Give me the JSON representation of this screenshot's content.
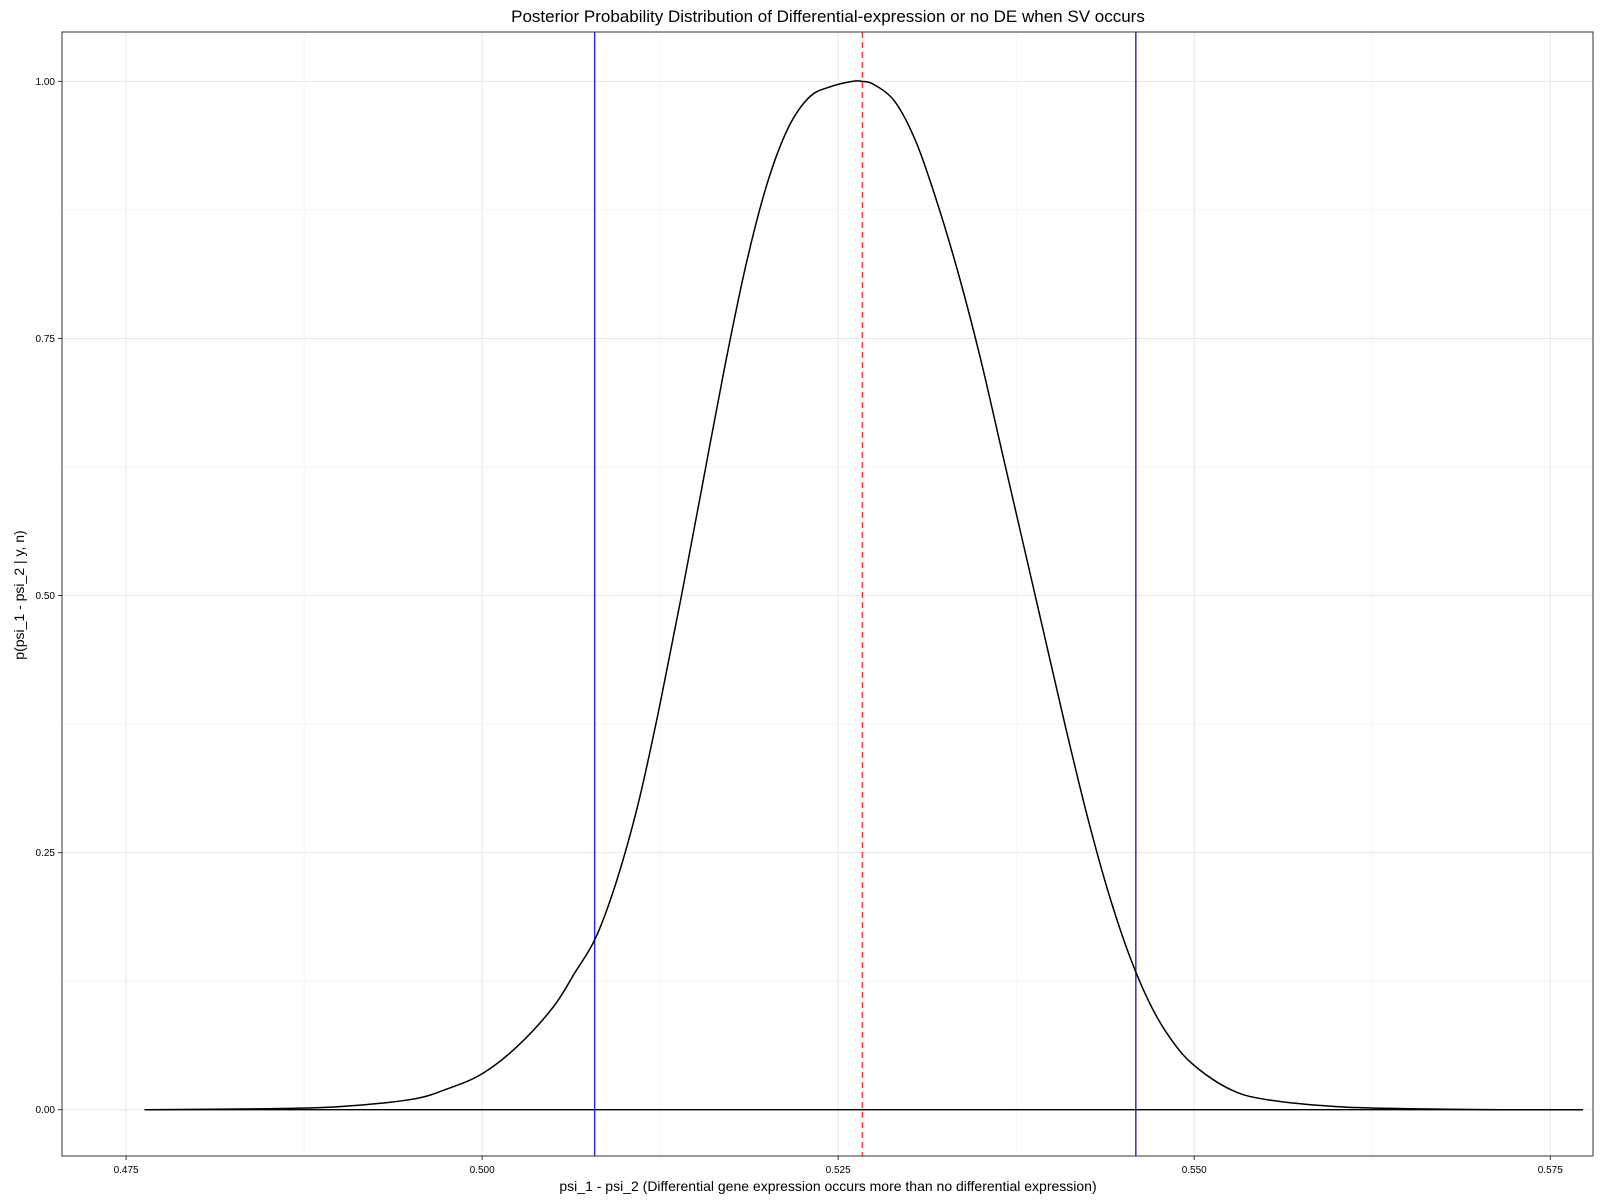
{
  "chart_data": {
    "type": "line",
    "title": "Posterior Probability Distribution of Differential-expression or no DE when SV occurs",
    "xlabel": "psi_1 - psi_2 (Differential gene expression occurs more than no differential expression)",
    "ylabel": "p(psi_1 - psi_2 | y, n)",
    "xlim": [
      0.4705,
      0.578
    ],
    "ylim": [
      -0.045,
      1.048
    ],
    "x_ticks": [
      0.475,
      0.5,
      0.525,
      0.55,
      0.575
    ],
    "x_tick_labels": [
      "0.475",
      "0.500",
      "0.525",
      "0.550",
      "0.575"
    ],
    "y_ticks": [
      0.0,
      0.25,
      0.5,
      0.75,
      1.0
    ],
    "y_tick_labels": [
      "0.00",
      "0.25",
      "0.50",
      "0.75",
      "1.00"
    ],
    "grid": true,
    "legend": "none",
    "series": [
      {
        "color": "#000000",
        "x": [
          0.4763,
          0.485,
          0.49,
          0.495,
          0.4975,
          0.5,
          0.5025,
          0.505,
          0.5065,
          0.508,
          0.5095,
          0.511,
          0.5125,
          0.514,
          0.5155,
          0.517,
          0.5185,
          0.52,
          0.5215,
          0.523,
          0.5245,
          0.526,
          0.5267,
          0.5275,
          0.529,
          0.5305,
          0.532,
          0.5335,
          0.535,
          0.5365,
          0.538,
          0.5395,
          0.541,
          0.5425,
          0.544,
          0.5455,
          0.547,
          0.5485,
          0.55,
          0.5525,
          0.555,
          0.56,
          0.565,
          0.5715,
          0.5773
        ],
        "y": [
          0.0,
          0.001,
          0.003,
          0.01,
          0.02,
          0.035,
          0.062,
          0.1,
          0.133,
          0.168,
          0.225,
          0.3,
          0.395,
          0.5,
          0.61,
          0.72,
          0.82,
          0.9,
          0.955,
          0.985,
          0.995,
          1.0,
          1.0,
          0.997,
          0.98,
          0.94,
          0.88,
          0.81,
          0.73,
          0.64,
          0.55,
          0.46,
          0.37,
          0.285,
          0.21,
          0.148,
          0.1,
          0.066,
          0.043,
          0.02,
          0.01,
          0.003,
          0.001,
          0.0,
          0.0
        ]
      }
    ],
    "reference_lines": [
      {
        "orientation": "vertical",
        "x": 0.5079,
        "color": "#2222ff",
        "style": "solid"
      },
      {
        "orientation": "vertical",
        "x": 0.5267,
        "color": "#ff3333",
        "style": "dashed"
      },
      {
        "orientation": "vertical",
        "x": 0.5459,
        "color": "#2222aa",
        "style": "solid"
      },
      {
        "orientation": "horizontal",
        "y": 0.0,
        "x_from": 0.4763,
        "x_to": 0.5773,
        "color": "#000000",
        "style": "solid"
      }
    ]
  }
}
